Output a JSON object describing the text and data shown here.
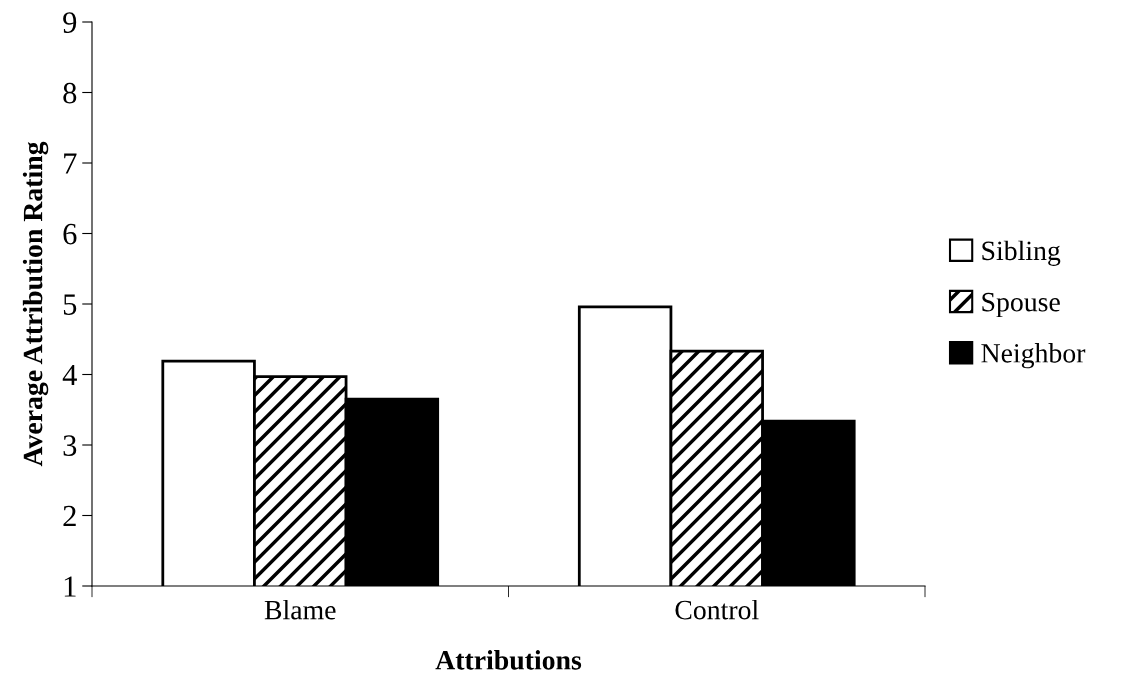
{
  "chart_data": {
    "type": "bar",
    "xlabel": "Attributions",
    "ylabel": "Average Attribution Rating",
    "categories": [
      "Blame",
      "Control"
    ],
    "series": [
      {
        "name": "Sibling",
        "color": "#ffffff",
        "values": [
          4.19,
          4.96
        ]
      },
      {
        "name": "Spouse",
        "color": "#000000",
        "line_style": "dashed",
        "values": [
          3.97,
          4.33
        ]
      },
      {
        "name": "Neighbor",
        "color": "#000000",
        "values": [
          3.65,
          3.34
        ]
      }
    ],
    "ylim": [
      1,
      9
    ],
    "yticks": [
      1,
      2,
      3,
      4,
      5,
      6,
      7,
      8,
      9
    ],
    "grid": false,
    "legend": "right"
  }
}
